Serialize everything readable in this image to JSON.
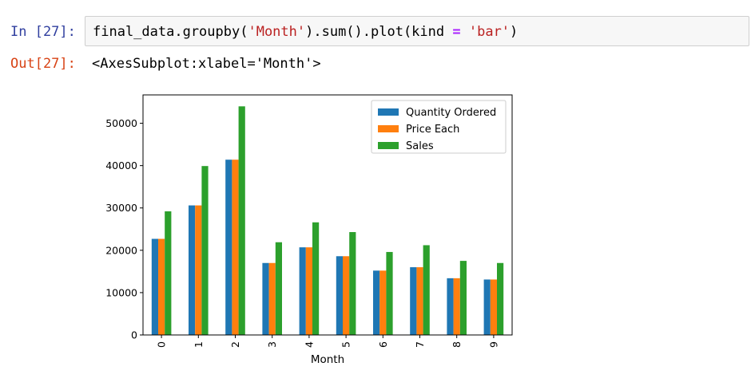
{
  "cell": {
    "in_prompt": "In [27]:",
    "out_prompt": "Out[27]:",
    "code_tokens": [
      {
        "text": "final_data.groupby(",
        "kind": "plain"
      },
      {
        "text": "'Month'",
        "kind": "str"
      },
      {
        "text": ").sum().plot(kind ",
        "kind": "plain"
      },
      {
        "text": "=",
        "kind": "op"
      },
      {
        "text": " ",
        "kind": "plain"
      },
      {
        "text": "'bar'",
        "kind": "str"
      },
      {
        "text": ")",
        "kind": "plain"
      }
    ],
    "output_text": "<AxesSubplot:xlabel='Month'>"
  },
  "chart_data": {
    "type": "bar",
    "categories": [
      "0",
      "1",
      "2",
      "3",
      "4",
      "5",
      "6",
      "7",
      "8",
      "9"
    ],
    "series": [
      {
        "name": "Quantity Ordered",
        "color": "#1f77b4",
        "values": [
          22700,
          30600,
          41400,
          17000,
          20700,
          18600,
          15200,
          16000,
          13400,
          13100
        ]
      },
      {
        "name": "Price Each",
        "color": "#ff7f0e",
        "values": [
          22700,
          30600,
          41400,
          17000,
          20700,
          18600,
          15200,
          16000,
          13400,
          13100
        ]
      },
      {
        "name": "Sales",
        "color": "#2ca02c",
        "values": [
          29200,
          39900,
          54000,
          21900,
          26600,
          24300,
          19600,
          21200,
          17500,
          17000
        ]
      }
    ],
    "xlabel": "Month",
    "ylabel": "",
    "ylim": [
      0,
      56700
    ],
    "yticks": [
      0,
      10000,
      20000,
      30000,
      40000,
      50000
    ],
    "ytick_labels": [
      "0",
      "10000",
      "20000",
      "30000",
      "40000",
      "50000"
    ],
    "legend": "top-right",
    "grid": false
  }
}
